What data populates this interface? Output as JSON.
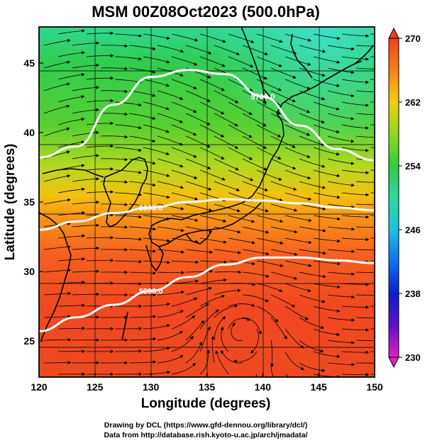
{
  "title": "MSM 00Z08Oct2023 (500.0hPa)",
  "x_axis": {
    "label": "Longitude (degrees)",
    "range": [
      120,
      150
    ],
    "ticks": [
      "120",
      "125",
      "130",
      "135",
      "140",
      "145",
      "150"
    ]
  },
  "y_axis": {
    "label": "Latitude  (degrees)",
    "range": [
      22.4,
      47.6
    ],
    "ticks": [
      "25",
      "30",
      "35",
      "40",
      "45"
    ]
  },
  "colorbar": {
    "range": [
      230,
      270
    ],
    "ticks": [
      "230",
      "238",
      "246",
      "254",
      "262",
      "270"
    ]
  },
  "contours": [
    {
      "label": "5700.0",
      "lat_profile": [
        38.2,
        39.0,
        42.0,
        44.0,
        44.5,
        44.2,
        42.6,
        40.5,
        38.8,
        38.0
      ]
    },
    {
      "label": "5800.0",
      "lat_profile": [
        33.0,
        33.6,
        34.2,
        34.6,
        35.0,
        35.2,
        35.1,
        34.9,
        34.6,
        34.4
      ]
    },
    {
      "label": "5900.0",
      "lat_profile": [
        25.7,
        26.7,
        27.6,
        28.6,
        29.6,
        30.5,
        31.0,
        31.0,
        30.8,
        30.6
      ]
    }
  ],
  "credits": [
    "Drawing by DCL (https://www.gfd-dennou.org/library/dcl/)",
    "Data from http://database.rish.kyoto-u.ac.jp/arch/jmadata/"
  ]
}
